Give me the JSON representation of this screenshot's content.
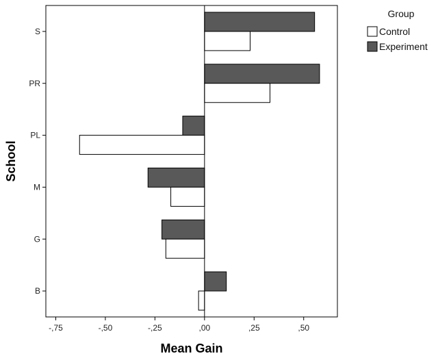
{
  "chart_data": {
    "type": "bar",
    "orientation": "horizontal",
    "categories": [
      "S",
      "PR",
      "PL",
      "M",
      "G",
      "B"
    ],
    "series": [
      {
        "name": "Control",
        "values": [
          0.23,
          0.33,
          -0.63,
          -0.17,
          -0.195,
          -0.03
        ],
        "color": "#ffffff"
      },
      {
        "name": "Experiment",
        "values": [
          0.555,
          0.58,
          -0.11,
          -0.285,
          -0.215,
          0.11
        ],
        "color": "#595959"
      }
    ],
    "xlabel": "Mean Gain",
    "ylabel": "School",
    "xlim": [
      -0.8,
      0.67
    ],
    "xticks": [
      -0.75,
      -0.5,
      -0.25,
      0.0,
      0.25,
      0.5
    ],
    "xtick_labels": [
      ",75",
      ",50",
      ",25",
      ",00",
      ",25",
      ",50"
    ],
    "xtick_signs": [
      "-",
      "-",
      "-",
      "",
      "",
      ""
    ],
    "reference_line": 0,
    "grid": false,
    "legend": {
      "title": "Group",
      "placement": "top-right, outside plot"
    }
  }
}
